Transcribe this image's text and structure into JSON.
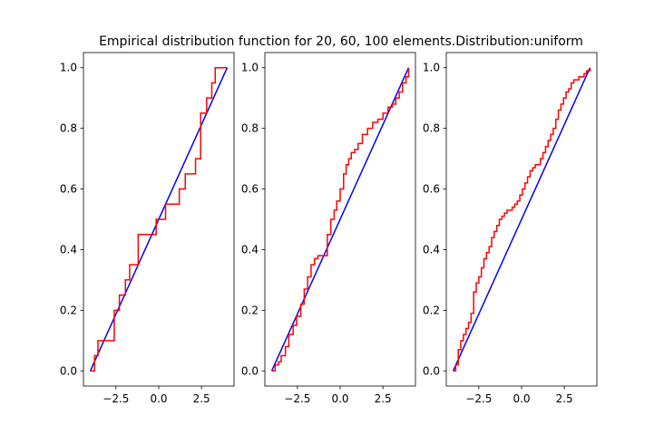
{
  "chart_data": [
    {
      "type": "line",
      "title": "Empirical distribution function for 20, 60, 100 elements.Distribution:uniform",
      "xlabel": "",
      "ylabel": "",
      "xlim": [
        -4.4,
        4.4
      ],
      "ylim": [
        -0.05,
        1.05
      ],
      "xticks": [
        -2.5,
        0.0,
        2.5
      ],
      "xtick_labels": [
        "−2.5",
        "0.0",
        "2.5"
      ],
      "yticks": [
        0.0,
        0.2,
        0.4,
        0.6,
        0.8,
        1.0
      ],
      "ytick_labels": [
        "0.0",
        "0.2",
        "0.4",
        "0.6",
        "0.8",
        "1.0"
      ],
      "grid": false,
      "legend": "none",
      "series": [
        {
          "color": "#0000ff",
          "style": "line",
          "x": [
            -4.0,
            4.0
          ],
          "y": [
            0.0,
            1.0
          ]
        },
        {
          "color": "#ff0000",
          "style": "step",
          "x": [
            -4.0,
            -3.75,
            -3.55,
            -3.3,
            -2.6,
            -2.3,
            -1.95,
            -1.7,
            -1.2,
            -0.7,
            -0.15,
            0.4,
            0.9,
            1.2,
            1.55,
            2.15,
            2.45,
            2.8,
            3.1,
            3.3,
            4.0
          ],
          "y": [
            0.0,
            0.05,
            0.1,
            0.1,
            0.2,
            0.25,
            0.3,
            0.35,
            0.45,
            0.45,
            0.5,
            0.55,
            0.55,
            0.6,
            0.65,
            0.7,
            0.85,
            0.9,
            0.95,
            1.0,
            1.0
          ]
        }
      ]
    },
    {
      "type": "line",
      "xlabel": "",
      "ylabel": "",
      "xlim": [
        -4.4,
        4.4
      ],
      "ylim": [
        -0.05,
        1.05
      ],
      "xticks": [
        -2.5,
        0.0,
        2.5
      ],
      "xtick_labels": [
        "−2.5",
        "0.0",
        "2.5"
      ],
      "yticks": [
        0.0,
        0.2,
        0.4,
        0.6,
        0.8,
        1.0
      ],
      "ytick_labels": [
        "0.0",
        "0.2",
        "0.4",
        "0.6",
        "0.8",
        "1.0"
      ],
      "grid": false,
      "legend": "none",
      "series": [
        {
          "color": "#0000ff",
          "style": "line",
          "x": [
            -4.0,
            4.0
          ],
          "y": [
            0.0,
            1.0
          ]
        },
        {
          "color": "#ff0000",
          "style": "step",
          "x": [
            -4.0,
            -3.8,
            -3.6,
            -3.45,
            -3.2,
            -3.0,
            -2.75,
            -2.55,
            -2.3,
            -2.1,
            -1.9,
            -1.7,
            -1.5,
            -1.3,
            -1.0,
            -0.75,
            -0.55,
            -0.35,
            -0.2,
            0.0,
            0.2,
            0.35,
            0.5,
            0.65,
            0.85,
            1.05,
            1.3,
            1.6,
            1.9,
            2.2,
            2.5,
            2.8,
            3.05,
            3.25,
            3.45,
            3.65,
            3.85,
            4.0
          ],
          "y": [
            0.0,
            0.02,
            0.03,
            0.05,
            0.08,
            0.12,
            0.15,
            0.18,
            0.22,
            0.27,
            0.31,
            0.35,
            0.37,
            0.38,
            0.38,
            0.45,
            0.5,
            0.53,
            0.56,
            0.6,
            0.65,
            0.68,
            0.7,
            0.72,
            0.73,
            0.75,
            0.78,
            0.8,
            0.82,
            0.83,
            0.85,
            0.87,
            0.88,
            0.9,
            0.92,
            0.95,
            0.97,
            1.0
          ]
        }
      ]
    },
    {
      "type": "line",
      "xlabel": "",
      "ylabel": "",
      "xlim": [
        -4.4,
        4.4
      ],
      "ylim": [
        -0.05,
        1.05
      ],
      "xticks": [
        -2.5,
        0.0,
        2.5
      ],
      "xtick_labels": [
        "−2.5",
        "0.0",
        "2.5"
      ],
      "yticks": [
        0.0,
        0.2,
        0.4,
        0.6,
        0.8,
        1.0
      ],
      "ytick_labels": [
        "0.0",
        "0.2",
        "0.4",
        "0.6",
        "0.8",
        "1.0"
      ],
      "grid": false,
      "legend": "none",
      "series": [
        {
          "color": "#0000ff",
          "style": "line",
          "x": [
            -4.0,
            4.0
          ],
          "y": [
            0.0,
            1.0
          ]
        },
        {
          "color": "#ff0000",
          "style": "step",
          "x": [
            -4.0,
            -3.85,
            -3.7,
            -3.55,
            -3.4,
            -3.25,
            -3.1,
            -2.95,
            -2.8,
            -2.65,
            -2.5,
            -2.35,
            -2.2,
            -2.05,
            -1.9,
            -1.75,
            -1.6,
            -1.45,
            -1.3,
            -1.15,
            -1.0,
            -0.85,
            -0.7,
            -0.55,
            -0.4,
            -0.25,
            -0.1,
            0.05,
            0.2,
            0.35,
            0.5,
            0.65,
            0.8,
            0.95,
            1.1,
            1.25,
            1.4,
            1.55,
            1.7,
            1.85,
            2.0,
            2.15,
            2.3,
            2.45,
            2.6,
            2.75,
            2.9,
            3.05,
            3.2,
            3.35,
            3.5,
            3.65,
            3.8,
            4.0
          ],
          "y": [
            0.0,
            0.02,
            0.07,
            0.1,
            0.12,
            0.14,
            0.16,
            0.19,
            0.26,
            0.29,
            0.31,
            0.34,
            0.37,
            0.39,
            0.41,
            0.44,
            0.46,
            0.48,
            0.5,
            0.51,
            0.52,
            0.53,
            0.53,
            0.54,
            0.55,
            0.56,
            0.58,
            0.6,
            0.62,
            0.64,
            0.66,
            0.67,
            0.68,
            0.68,
            0.7,
            0.72,
            0.74,
            0.76,
            0.78,
            0.8,
            0.83,
            0.86,
            0.88,
            0.9,
            0.92,
            0.93,
            0.95,
            0.96,
            0.96,
            0.97,
            0.97,
            0.98,
            0.99,
            1.0
          ]
        }
      ]
    }
  ]
}
